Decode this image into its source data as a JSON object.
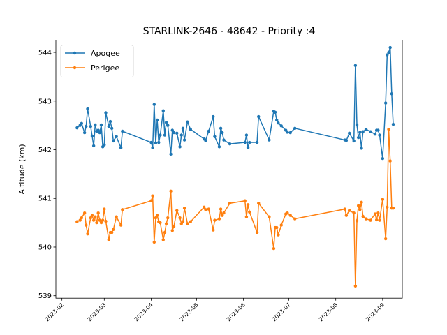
{
  "chart_data": {
    "type": "line",
    "title": "STARLINK-2646 - 48642 - Priority :4",
    "xlabel": "",
    "ylabel": "Altitude (km)",
    "ylim": [
      538.95,
      544.25
    ],
    "xlim": [
      "2023-01-28",
      "2023-09-14"
    ],
    "x_tick_labels": [
      "2023-02",
      "2023-03",
      "2023-04",
      "2023-05",
      "2023-06",
      "2023-07",
      "2023-08",
      "2023-09"
    ],
    "y_tick_labels": [
      "539",
      "540",
      "541",
      "542",
      "543",
      "544"
    ],
    "grid": false,
    "legend": "top-left",
    "series": [
      {
        "name": "Apogee",
        "color": "#1f77b4",
        "x": [
          "2023-02-11",
          "2023-02-13",
          "2023-02-14",
          "2023-02-16",
          "2023-02-17",
          "2023-02-18",
          "2023-02-20",
          "2023-02-21",
          "2023-02-22",
          "2023-02-23",
          "2023-02-24",
          "2023-02-25",
          "2023-02-26",
          "2023-02-27",
          "2023-02-28",
          "2023-03-01",
          "2023-03-02",
          "2023-03-04",
          "2023-03-05",
          "2023-03-06",
          "2023-03-07",
          "2023-03-09",
          "2023-03-12",
          "2023-03-13",
          "2023-04-01",
          "2023-04-02",
          "2023-04-03",
          "2023-04-04",
          "2023-04-05",
          "2023-04-06",
          "2023-04-07",
          "2023-04-09",
          "2023-04-10",
          "2023-04-11",
          "2023-04-12",
          "2023-04-14",
          "2023-04-15",
          "2023-04-16",
          "2023-04-18",
          "2023-04-20",
          "2023-04-21",
          "2023-04-22",
          "2023-04-23",
          "2023-04-25",
          "2023-04-27",
          "2023-05-06",
          "2023-05-07",
          "2023-05-09",
          "2023-05-12",
          "2023-05-13",
          "2023-05-16",
          "2023-05-17",
          "2023-05-18",
          "2023-05-19",
          "2023-05-23",
          "2023-06-02",
          "2023-06-03",
          "2023-06-04",
          "2023-06-05",
          "2023-06-10",
          "2023-06-11",
          "2023-06-18",
          "2023-06-21",
          "2023-06-22",
          "2023-06-23",
          "2023-06-24",
          "2023-06-26",
          "2023-06-29",
          "2023-06-30",
          "2023-07-02",
          "2023-07-05",
          "2023-08-07",
          "2023-08-08",
          "2023-08-10",
          "2023-08-13",
          "2023-08-14",
          "2023-08-15",
          "2023-08-16",
          "2023-08-17",
          "2023-08-18",
          "2023-08-19",
          "2023-08-21",
          "2023-08-24",
          "2023-08-27",
          "2023-08-28",
          "2023-08-29",
          "2023-08-30",
          "2023-09-01",
          "2023-09-03",
          "2023-09-04",
          "2023-09-05",
          "2023-09-06",
          "2023-09-07",
          "2023-09-08"
        ],
        "y": [
          542.45,
          542.5,
          542.54,
          542.35,
          542.48,
          542.84,
          542.48,
          542.28,
          542.08,
          542.51,
          542.38,
          542.4,
          542.35,
          542.51,
          542.06,
          542.1,
          542.76,
          542.48,
          542.58,
          542.44,
          542.18,
          542.27,
          542.04,
          542.38,
          542.15,
          542.04,
          542.93,
          542.14,
          542.61,
          542.15,
          542.3,
          542.8,
          542.3,
          542.56,
          542.5,
          541.91,
          542.4,
          542.35,
          542.34,
          542.06,
          542.3,
          542.44,
          542.2,
          542.57,
          542.42,
          542.22,
          542.19,
          542.38,
          542.68,
          542.27,
          542.06,
          542.44,
          542.35,
          542.2,
          542.12,
          542.15,
          542.3,
          542.04,
          542.15,
          542.15,
          542.68,
          542.2,
          542.79,
          542.77,
          542.61,
          542.55,
          542.49,
          542.4,
          542.36,
          542.35,
          542.44,
          542.2,
          542.19,
          542.34,
          542.18,
          543.73,
          542.51,
          542.25,
          542.36,
          542.03,
          542.37,
          542.42,
          542.37,
          542.32,
          542.4,
          542.4,
          542.3,
          541.82,
          542.96,
          543.95,
          544.0,
          544.1,
          543.15,
          542.52
        ]
      },
      {
        "name": "Perigee",
        "color": "#ff7f0e",
        "x": [
          "2023-02-11",
          "2023-02-13",
          "2023-02-14",
          "2023-02-16",
          "2023-02-17",
          "2023-02-18",
          "2023-02-20",
          "2023-02-21",
          "2023-02-22",
          "2023-02-23",
          "2023-02-24",
          "2023-02-25",
          "2023-02-26",
          "2023-02-27",
          "2023-02-28",
          "2023-03-01",
          "2023-03-02",
          "2023-03-04",
          "2023-03-05",
          "2023-03-06",
          "2023-03-07",
          "2023-03-09",
          "2023-03-12",
          "2023-03-13",
          "2023-04-01",
          "2023-04-02",
          "2023-04-03",
          "2023-04-04",
          "2023-04-05",
          "2023-04-06",
          "2023-04-07",
          "2023-04-09",
          "2023-04-10",
          "2023-04-11",
          "2023-04-12",
          "2023-04-14",
          "2023-04-15",
          "2023-04-16",
          "2023-04-18",
          "2023-04-20",
          "2023-04-21",
          "2023-04-22",
          "2023-04-23",
          "2023-04-25",
          "2023-04-27",
          "2023-05-06",
          "2023-05-07",
          "2023-05-09",
          "2023-05-12",
          "2023-05-13",
          "2023-05-16",
          "2023-05-17",
          "2023-05-18",
          "2023-05-19",
          "2023-05-23",
          "2023-06-02",
          "2023-06-03",
          "2023-06-04",
          "2023-06-05",
          "2023-06-10",
          "2023-06-11",
          "2023-06-18",
          "2023-06-21",
          "2023-06-22",
          "2023-06-23",
          "2023-06-24",
          "2023-06-26",
          "2023-06-29",
          "2023-06-30",
          "2023-07-02",
          "2023-07-05",
          "2023-08-07",
          "2023-08-08",
          "2023-08-10",
          "2023-08-13",
          "2023-08-14",
          "2023-08-15",
          "2023-08-16",
          "2023-08-17",
          "2023-08-18",
          "2023-08-19",
          "2023-08-21",
          "2023-08-24",
          "2023-08-27",
          "2023-08-28",
          "2023-08-29",
          "2023-08-30",
          "2023-09-01",
          "2023-09-03",
          "2023-09-04",
          "2023-09-05",
          "2023-09-06",
          "2023-09-07",
          "2023-09-08"
        ],
        "y": [
          540.52,
          540.55,
          540.6,
          540.7,
          540.45,
          540.27,
          540.6,
          540.65,
          540.55,
          540.62,
          540.5,
          540.7,
          540.55,
          540.5,
          540.55,
          540.78,
          540.53,
          540.15,
          540.3,
          540.3,
          540.36,
          540.62,
          540.45,
          540.77,
          540.95,
          541.05,
          540.1,
          540.6,
          540.65,
          540.52,
          540.5,
          540.15,
          540.3,
          540.48,
          540.6,
          541.15,
          540.34,
          540.42,
          540.75,
          540.6,
          540.48,
          540.52,
          540.8,
          540.48,
          540.52,
          540.82,
          540.77,
          540.78,
          540.35,
          540.55,
          540.58,
          540.78,
          540.65,
          540.7,
          540.9,
          540.95,
          540.62,
          540.87,
          540.72,
          540.3,
          540.9,
          540.62,
          539.97,
          540.4,
          540.4,
          540.25,
          540.45,
          540.68,
          540.7,
          540.65,
          540.58,
          540.78,
          540.65,
          540.75,
          540.7,
          539.2,
          540.54,
          540.85,
          540.77,
          540.92,
          540.63,
          540.58,
          540.55,
          540.68,
          540.56,
          540.7,
          540.55,
          540.98,
          540.17,
          540.82,
          542.42,
          541.77,
          540.8,
          540.8
        ]
      }
    ]
  }
}
